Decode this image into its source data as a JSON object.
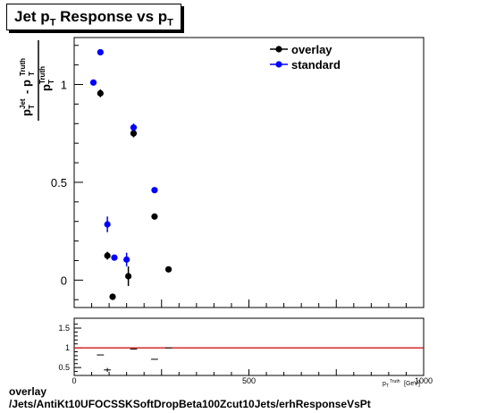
{
  "title": {
    "main": "Jet p",
    "sub1": "T",
    "mid": " Response vs p",
    "sub2": "T"
  },
  "footer": {
    "line1": "overlay",
    "line2": "/Jets/AntiKt10UFOCSSKSoftDropBeta100Zcut10Jets/erhResponseVsPt"
  },
  "colors": {
    "overlay": "#000000",
    "standard": "#0000ff",
    "ratio_line": "#cc0000"
  },
  "chart_data": [
    {
      "type": "scatter",
      "xlim": [
        0,
        1000
      ],
      "ylim": [
        -0.14,
        1.24
      ],
      "yticks": [
        0,
        0.5,
        1
      ],
      "ytick_labels": [
        "0",
        "0.5",
        "1"
      ],
      "ylabel": "p_T^Jet - p_T^Truth / p_T^Truth",
      "legend": "top-right",
      "series": [
        {
          "name": "overlay",
          "points": [
            {
              "x": 75,
              "y": 0.955,
              "err": 0.02
            },
            {
              "x": 95,
              "y": 0.125,
              "err": 0.02
            },
            {
              "x": 110,
              "y": -0.085,
              "err": 0.015
            },
            {
              "x": 155,
              "y": 0.02,
              "err": 0.05
            },
            {
              "x": 170,
              "y": 0.75,
              "err": 0.02
            },
            {
              "x": 230,
              "y": 0.325,
              "err": 0.015
            },
            {
              "x": 270,
              "y": 0.055,
              "err": 0.015
            }
          ]
        },
        {
          "name": "standard",
          "points": [
            {
              "x": 55,
              "y": 1.01,
              "err": 0.015
            },
            {
              "x": 75,
              "y": 1.165,
              "err": 0.015
            },
            {
              "x": 95,
              "y": 0.285,
              "err": 0.04
            },
            {
              "x": 115,
              "y": 0.115,
              "err": 0.015
            },
            {
              "x": 150,
              "y": 0.105,
              "err": 0.035
            },
            {
              "x": 170,
              "y": 0.78,
              "err": 0.02
            },
            {
              "x": 230,
              "y": 0.46,
              "err": 0.015
            }
          ]
        }
      ]
    },
    {
      "type": "scatter",
      "xlim": [
        0,
        1000
      ],
      "ylim": [
        0.3,
        1.75
      ],
      "xticks": [
        0,
        500,
        1000
      ],
      "xtick_labels": [
        "0",
        "500",
        "1000"
      ],
      "yticks": [
        0.5,
        1,
        1.5
      ],
      "ytick_labels": [
        "0.5",
        "1",
        "1.5"
      ],
      "xlabel": "p_T^Truth [GeV]",
      "reference_line": 1,
      "series": [
        {
          "name": "ratio",
          "points": [
            {
              "x": 75,
              "y": 0.82,
              "xerr": 10
            },
            {
              "x": 95,
              "y": 0.44,
              "xerr": 10,
              "err": 0.05
            },
            {
              "x": 170,
              "y": 0.97,
              "xerr": 10
            },
            {
              "x": 230,
              "y": 0.71,
              "xerr": 10
            },
            {
              "x": 270,
              "y": 1.0,
              "xerr": 10
            }
          ]
        }
      ]
    }
  ]
}
